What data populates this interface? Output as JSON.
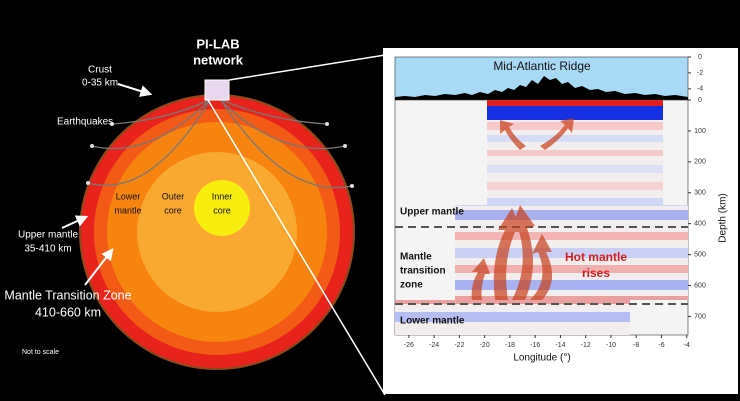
{
  "left": {
    "title_lines": [
      "PI-LAB",
      "network"
    ],
    "crust": [
      "Crust",
      "0-35 km"
    ],
    "earthquakes": "Earthquakes",
    "lower_mantle": [
      "Lower",
      "mantle"
    ],
    "outer_core": [
      "Outer",
      "core"
    ],
    "inner_core": [
      "Inner",
      "core"
    ],
    "upper_mantle": [
      "Upper mantle",
      "35-410 km"
    ],
    "transition_zone": [
      "Mantle Transition Zone",
      "410-660 km"
    ],
    "note": "Not to scale"
  },
  "right": {
    "bathymetry": {
      "title": "Mid-Atlantic Ridge",
      "ylim": [
        0,
        -5.4
      ],
      "yticks": [
        0,
        -2,
        -4
      ]
    },
    "tomography": {
      "xlim": [
        -27.1,
        -3.9
      ],
      "xticks": [
        -26,
        -24,
        -22,
        -20,
        -18,
        -16,
        -14,
        -12,
        -10,
        -8,
        -6,
        -4
      ],
      "ylim": [
        0,
        760
      ],
      "yticks": [
        0,
        100,
        200,
        300,
        400,
        500,
        600,
        700
      ],
      "xlabel": "Longitude (°)",
      "ylabel": "Depth (km)",
      "upper_mantle": "Upper mantle",
      "transition_zone": [
        "Mantle",
        "transition",
        "zone"
      ],
      "lower_mantle": "Lower mantle",
      "annotation": [
        "Hot mantle",
        "rises"
      ]
    }
  }
}
